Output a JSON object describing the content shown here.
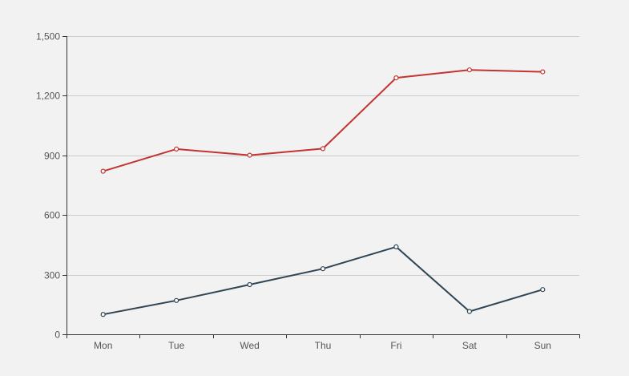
{
  "chart_data": {
    "type": "line",
    "title": "",
    "xlabel": "",
    "ylabel": "",
    "categories": [
      "Mon",
      "Tue",
      "Wed",
      "Thu",
      "Fri",
      "Sat",
      "Sun"
    ],
    "ylim": [
      0,
      1500
    ],
    "y_ticks": [
      0,
      300,
      600,
      900,
      1200,
      1500
    ],
    "y_tick_labels": [
      "0",
      "300",
      "600",
      "900",
      "1,200",
      "1,500"
    ],
    "grid": true,
    "legend": "none",
    "series": [
      {
        "values": [
          820,
          932,
          901,
          934,
          1290,
          1330,
          1320
        ],
        "color": "#c23531"
      },
      {
        "values": [
          100,
          170,
          250,
          330,
          440,
          115,
          225
        ],
        "color": "#2f4554"
      }
    ],
    "background": "#f3f2f2"
  }
}
